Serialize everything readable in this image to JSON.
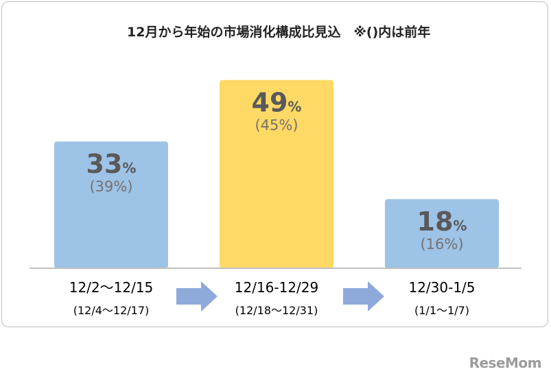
{
  "title": "12月から年始の市場消化構成比見込　※()内は前年",
  "watermark": "ReseMom",
  "colors": {
    "bar": "#9dc3e6",
    "highlight": "#ffd966",
    "arrow": "#8eaadb",
    "value_text": "#595959",
    "prev_text": "#767171"
  },
  "chart_data": {
    "type": "bar",
    "title": "12月から年始の市場消化構成比見込　※()内は前年",
    "categories": [
      "12/2～12/15",
      "12/16-12/29",
      "12/30-1/5"
    ],
    "categories_prev": [
      "(12/4～12/17)",
      "(12/18～12/31)",
      "(1/1～1/7)"
    ],
    "unit": "%",
    "series": [
      {
        "values": [
          33,
          49,
          18
        ],
        "highlight_index": 1
      },
      {
        "values": [
          39,
          45,
          16
        ],
        "display": "parenthesized"
      }
    ],
    "ylim": [
      0,
      50
    ],
    "arrows_between_categories": true
  }
}
